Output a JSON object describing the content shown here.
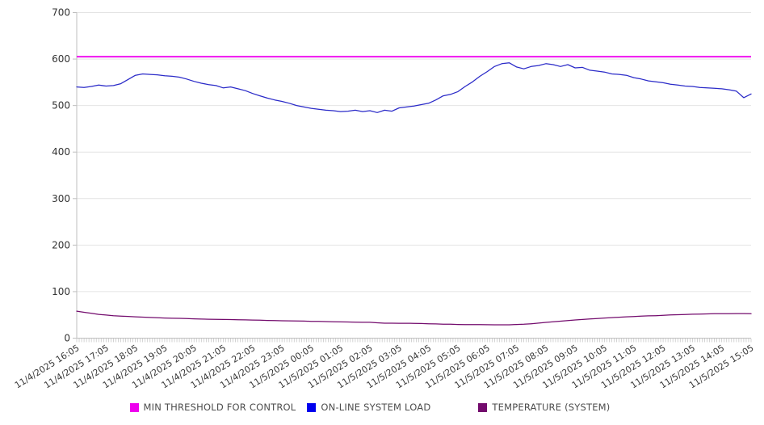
{
  "chart_data": {
    "type": "line",
    "title": "",
    "xlabel": "",
    "ylabel": "",
    "ylim": [
      0,
      700
    ],
    "y_ticks": [
      0,
      100,
      200,
      300,
      400,
      500,
      600,
      700
    ],
    "grid": "horizontal",
    "legend_position": "bottom",
    "x_minor_tick_minutes": 5,
    "points_per_hour": 4,
    "x_labels": [
      "11/4/2025 16:05",
      "11/4/2025 17:05",
      "11/4/2025 18:05",
      "11/4/2025 19:05",
      "11/4/2025 20:05",
      "11/4/2025 21:05",
      "11/4/2025 22:05",
      "11/4/2025 23:05",
      "11/5/2025 00:05",
      "11/5/2025 01:05",
      "11/5/2025 02:05",
      "11/5/2025 03:05",
      "11/5/2025 04:05",
      "11/5/2025 05:05",
      "11/5/2025 06:05",
      "11/5/2025 07:05",
      "11/5/2025 08:05",
      "11/5/2025 09:05",
      "11/5/2025 10:05",
      "11/5/2025 11:05",
      "11/5/2025 12:05",
      "11/5/2025 13:05",
      "11/5/2025 14:05",
      "11/5/2025 15:05"
    ],
    "series": [
      {
        "name": "MIN THRESHOLD FOR CONTROL",
        "color": "#EE00EE",
        "type": "constant",
        "value": 605
      },
      {
        "name": "ON-LINE SYSTEM LOAD",
        "color": "#2A2AC8",
        "legend_color": "#0000EE",
        "type": "line",
        "values": [
          540,
          539,
          541,
          544,
          542,
          543,
          547,
          556,
          565,
          568,
          567,
          566,
          564,
          563,
          561,
          557,
          552,
          548,
          545,
          543,
          538,
          540,
          536,
          532,
          526,
          521,
          516,
          512,
          509,
          505,
          500,
          497,
          494,
          492,
          490,
          489,
          487,
          488,
          490,
          487,
          489,
          485,
          490,
          488,
          495,
          497,
          499,
          502,
          505,
          512,
          521,
          524,
          530,
          541,
          551,
          563,
          573,
          584,
          590,
          592,
          583,
          579,
          584,
          586,
          590,
          588,
          584,
          588,
          581,
          582,
          576,
          574,
          572,
          568,
          567,
          565,
          560,
          557,
          553,
          551,
          549,
          546,
          544,
          542,
          541,
          539,
          538,
          537,
          536,
          534,
          531,
          517,
          525
        ]
      },
      {
        "name": "TEMPERATURE (SYSTEM)",
        "color": "#730B6D",
        "legend_color": "#730B6D",
        "type": "line",
        "values": [
          58,
          55.5,
          53.5,
          51,
          49.6,
          48.3,
          47.4,
          46.8,
          45.8,
          45.2,
          44.4,
          43.9,
          43.3,
          42.8,
          42.5,
          42,
          41.5,
          41,
          40.7,
          40.4,
          40.1,
          39.9,
          39.6,
          39.3,
          38.9,
          38.5,
          38,
          37.7,
          37.4,
          37.1,
          36.9,
          36.6,
          36.2,
          35.9,
          35.6,
          35.3,
          35,
          34.7,
          34.3,
          34.1,
          34,
          33,
          32.2,
          32.2,
          32,
          31.9,
          31.7,
          31.4,
          31,
          30.6,
          30.1,
          29.8,
          29.4,
          29.2,
          29.1,
          29,
          28.8,
          28.7,
          28.6,
          28.6,
          29.3,
          29.8,
          31,
          32.3,
          33.8,
          35.2,
          36.5,
          37.8,
          39,
          40.2,
          41.2,
          42.2,
          43.2,
          44.2,
          45,
          45.8,
          46.6,
          47.3,
          48,
          48.3,
          49,
          49.8,
          50.4,
          50.8,
          51.4,
          51.8,
          52.1,
          52.4,
          52.6,
          52.7,
          52.8,
          52.8,
          52.5
        ]
      }
    ],
    "style": {
      "gridline_color": "#e4e4e4",
      "axis_color": "#bfbfbf",
      "tick_color": "#c0c0c0",
      "y_label_color": "#333333",
      "x_label_color": "#3a3a3a",
      "background": "#ffffff"
    }
  }
}
